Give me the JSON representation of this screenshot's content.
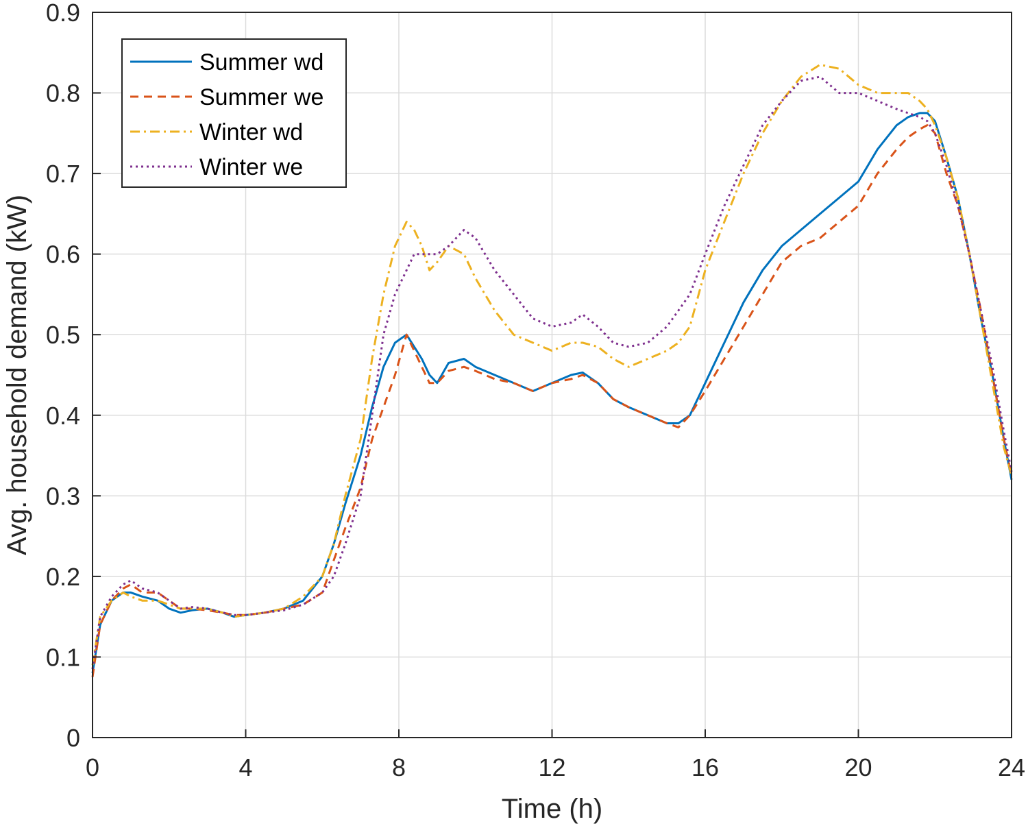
{
  "chart_data": {
    "type": "line",
    "xlabel": "Time (h)",
    "ylabel": "Avg. household demand (kW)",
    "xlim": [
      0,
      24
    ],
    "ylim": [
      0,
      0.9
    ],
    "xticks": [
      0,
      4,
      8,
      12,
      16,
      20,
      24
    ],
    "yticks": [
      0,
      0.1,
      0.2,
      0.3,
      0.4,
      0.5,
      0.6,
      0.7,
      0.8,
      0.9
    ],
    "xtick_labels": [
      "0",
      "4",
      "8",
      "12",
      "16",
      "20",
      "24"
    ],
    "ytick_labels": [
      "0",
      "0.1",
      "0.2",
      "0.3",
      "0.4",
      "0.5",
      "0.6",
      "0.7",
      "0.8",
      "0.9"
    ],
    "grid": true,
    "legend_position": "top-left",
    "series": [
      {
        "name": "Summer wd",
        "color": "#0072BD",
        "style": "solid",
        "x": [
          0,
          0.2,
          0.5,
          0.8,
          1.0,
          1.3,
          1.7,
          2.0,
          2.3,
          2.6,
          3.0,
          3.4,
          3.7,
          4.0,
          4.5,
          5.0,
          5.5,
          6.0,
          6.3,
          6.6,
          7.0,
          7.3,
          7.6,
          7.9,
          8.2,
          8.4,
          8.6,
          8.8,
          9.0,
          9.3,
          9.7,
          10.0,
          10.5,
          11.0,
          11.5,
          12.0,
          12.5,
          12.8,
          13.2,
          13.6,
          14.0,
          14.5,
          15.0,
          15.3,
          15.6,
          16.0,
          16.5,
          17.0,
          17.5,
          18.0,
          18.5,
          19.0,
          19.5,
          20.0,
          20.5,
          21.0,
          21.3,
          21.6,
          21.8,
          22.0,
          22.3,
          22.6,
          22.9,
          23.2,
          23.5,
          23.8,
          24.0
        ],
        "y": [
          0.08,
          0.14,
          0.17,
          0.18,
          0.18,
          0.175,
          0.17,
          0.16,
          0.155,
          0.158,
          0.16,
          0.155,
          0.15,
          0.152,
          0.155,
          0.16,
          0.17,
          0.2,
          0.24,
          0.29,
          0.35,
          0.41,
          0.46,
          0.49,
          0.5,
          0.485,
          0.47,
          0.45,
          0.44,
          0.465,
          0.47,
          0.46,
          0.45,
          0.44,
          0.43,
          0.44,
          0.45,
          0.453,
          0.44,
          0.42,
          0.41,
          0.4,
          0.39,
          0.39,
          0.4,
          0.44,
          0.49,
          0.54,
          0.58,
          0.61,
          0.63,
          0.65,
          0.67,
          0.69,
          0.73,
          0.76,
          0.77,
          0.775,
          0.775,
          0.765,
          0.72,
          0.67,
          0.6,
          0.52,
          0.45,
          0.37,
          0.32
        ]
      },
      {
        "name": "Summer we",
        "color": "#D95319",
        "style": "dashed",
        "x": [
          0,
          0.2,
          0.5,
          0.8,
          1.0,
          1.3,
          1.7,
          2.0,
          2.3,
          2.6,
          3.0,
          3.4,
          3.7,
          4.0,
          4.5,
          5.0,
          5.5,
          6.0,
          6.3,
          6.6,
          7.0,
          7.3,
          7.6,
          7.9,
          8.2,
          8.4,
          8.6,
          8.8,
          9.0,
          9.3,
          9.7,
          10.0,
          10.5,
          11.0,
          11.5,
          12.0,
          12.5,
          12.8,
          13.2,
          13.6,
          14.0,
          14.5,
          15.0,
          15.3,
          15.6,
          16.0,
          16.5,
          17.0,
          17.5,
          18.0,
          18.5,
          19.0,
          19.5,
          20.0,
          20.5,
          21.0,
          21.3,
          21.6,
          21.8,
          22.0,
          22.3,
          22.6,
          22.9,
          23.2,
          23.5,
          23.8,
          24.0
        ],
        "y": [
          0.075,
          0.14,
          0.17,
          0.185,
          0.19,
          0.18,
          0.18,
          0.17,
          0.16,
          0.16,
          0.158,
          0.155,
          0.152,
          0.152,
          0.155,
          0.16,
          0.165,
          0.18,
          0.22,
          0.26,
          0.31,
          0.37,
          0.41,
          0.45,
          0.5,
          0.48,
          0.46,
          0.44,
          0.44,
          0.455,
          0.46,
          0.455,
          0.445,
          0.44,
          0.43,
          0.44,
          0.445,
          0.45,
          0.44,
          0.42,
          0.41,
          0.4,
          0.39,
          0.385,
          0.4,
          0.43,
          0.47,
          0.51,
          0.55,
          0.59,
          0.61,
          0.62,
          0.64,
          0.66,
          0.7,
          0.73,
          0.745,
          0.755,
          0.76,
          0.75,
          0.7,
          0.66,
          0.6,
          0.53,
          0.45,
          0.37,
          0.325
        ]
      },
      {
        "name": "Winter wd",
        "color": "#EDB120",
        "style": "dashdot",
        "x": [
          0,
          0.2,
          0.5,
          0.8,
          1.0,
          1.3,
          1.7,
          2.0,
          2.3,
          2.6,
          3.0,
          3.4,
          3.7,
          4.0,
          4.5,
          5.0,
          5.5,
          6.0,
          6.3,
          6.6,
          7.0,
          7.3,
          7.6,
          7.9,
          8.2,
          8.4,
          8.6,
          8.8,
          9.0,
          9.3,
          9.7,
          10.0,
          10.5,
          11.0,
          11.5,
          12.0,
          12.5,
          12.8,
          13.2,
          13.6,
          14.0,
          14.5,
          15.0,
          15.3,
          15.6,
          16.0,
          16.5,
          17.0,
          17.5,
          18.0,
          18.5,
          19.0,
          19.5,
          20.0,
          20.5,
          21.0,
          21.3,
          21.6,
          21.8,
          22.0,
          22.3,
          22.6,
          22.9,
          23.2,
          23.5,
          23.8,
          24.0
        ],
        "y": [
          0.09,
          0.15,
          0.17,
          0.18,
          0.175,
          0.17,
          0.17,
          0.165,
          0.16,
          0.16,
          0.16,
          0.155,
          0.15,
          0.152,
          0.155,
          0.16,
          0.175,
          0.2,
          0.24,
          0.3,
          0.37,
          0.47,
          0.55,
          0.61,
          0.64,
          0.63,
          0.61,
          0.58,
          0.59,
          0.61,
          0.6,
          0.57,
          0.53,
          0.5,
          0.49,
          0.48,
          0.49,
          0.49,
          0.485,
          0.47,
          0.46,
          0.47,
          0.48,
          0.49,
          0.51,
          0.58,
          0.64,
          0.7,
          0.75,
          0.79,
          0.82,
          0.835,
          0.83,
          0.81,
          0.8,
          0.8,
          0.8,
          0.79,
          0.78,
          0.76,
          0.72,
          0.67,
          0.6,
          0.52,
          0.44,
          0.36,
          0.325
        ]
      },
      {
        "name": "Winter we",
        "color": "#7E2F8E",
        "style": "dotted",
        "x": [
          0,
          0.2,
          0.5,
          0.8,
          1.0,
          1.3,
          1.7,
          2.0,
          2.3,
          2.6,
          3.0,
          3.4,
          3.7,
          4.0,
          4.5,
          5.0,
          5.5,
          6.0,
          6.3,
          6.6,
          7.0,
          7.3,
          7.6,
          7.9,
          8.2,
          8.4,
          8.6,
          8.8,
          9.0,
          9.3,
          9.7,
          10.0,
          10.5,
          11.0,
          11.5,
          12.0,
          12.5,
          12.8,
          13.2,
          13.6,
          14.0,
          14.5,
          15.0,
          15.3,
          15.6,
          16.0,
          16.5,
          17.0,
          17.5,
          18.0,
          18.5,
          19.0,
          19.5,
          20.0,
          20.5,
          21.0,
          21.3,
          21.6,
          21.8,
          22.0,
          22.3,
          22.6,
          22.9,
          23.2,
          23.5,
          23.8,
          24.0
        ],
        "y": [
          0.085,
          0.15,
          0.175,
          0.19,
          0.195,
          0.185,
          0.18,
          0.17,
          0.16,
          0.162,
          0.16,
          0.155,
          0.152,
          0.152,
          0.155,
          0.158,
          0.165,
          0.18,
          0.2,
          0.24,
          0.3,
          0.4,
          0.5,
          0.55,
          0.58,
          0.6,
          0.6,
          0.6,
          0.6,
          0.61,
          0.63,
          0.62,
          0.58,
          0.55,
          0.52,
          0.51,
          0.515,
          0.525,
          0.51,
          0.49,
          0.485,
          0.49,
          0.51,
          0.53,
          0.55,
          0.6,
          0.66,
          0.71,
          0.76,
          0.79,
          0.815,
          0.82,
          0.8,
          0.8,
          0.79,
          0.78,
          0.775,
          0.77,
          0.765,
          0.75,
          0.71,
          0.66,
          0.6,
          0.53,
          0.46,
          0.38,
          0.33
        ]
      }
    ]
  }
}
